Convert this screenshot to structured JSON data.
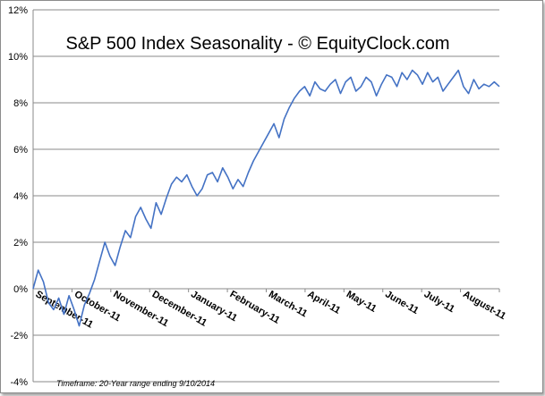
{
  "chart_data": {
    "type": "line",
    "title": "S&P 500 Index Seasonality - © EquityClock.com",
    "xlabel": "",
    "ylabel": "",
    "ylim": [
      -4,
      12
    ],
    "yticks": [
      "-4%",
      "-2%",
      "0%",
      "2%",
      "4%",
      "6%",
      "8%",
      "10%",
      "12%"
    ],
    "grid": "horizontal",
    "legend": "none",
    "line_color": "#4472c4",
    "x_tick_labels": [
      "September-11",
      "October-11",
      "November-11",
      "December-11",
      "January-11",
      "February-11",
      "March-11",
      "April-11",
      "May-11",
      "June-11",
      "July-11",
      "August-11"
    ],
    "footnote": "Timeframe: 20-Year range ending 9/10/2014",
    "series": [
      {
        "x": [
          "Sep 11",
          "Sep 15",
          "Sep 19",
          "Sep 23",
          "Sep 27",
          "Oct 1",
          "Oct 5",
          "Oct 9",
          "Oct 13",
          "Oct 17",
          "Oct 21",
          "Oct 25",
          "Oct 29",
          "Nov 2",
          "Nov 6",
          "Nov 10",
          "Nov 14",
          "Nov 18",
          "Nov 22",
          "Nov 26",
          "Nov 30",
          "Dec 4",
          "Dec 8",
          "Dec 12",
          "Dec 16",
          "Dec 20",
          "Dec 24",
          "Dec 28",
          "Jan 1",
          "Jan 5",
          "Jan 9",
          "Jan 13",
          "Jan 17",
          "Jan 21",
          "Jan 25",
          "Jan 29",
          "Feb 2",
          "Feb 6",
          "Feb 10",
          "Feb 14",
          "Feb 18",
          "Feb 22",
          "Feb 26",
          "Mar 2",
          "Mar 6",
          "Mar 10",
          "Mar 14",
          "Mar 18",
          "Mar 22",
          "Mar 26",
          "Mar 30",
          "Apr 3",
          "Apr 7",
          "Apr 11",
          "Apr 15",
          "Apr 19",
          "Apr 23",
          "Apr 27",
          "May 1",
          "May 5",
          "May 9",
          "May 13",
          "May 17",
          "May 21",
          "May 25",
          "May 29",
          "Jun 2",
          "Jun 6",
          "Jun 10",
          "Jun 14",
          "Jun 18",
          "Jun 22",
          "Jun 26",
          "Jun 30",
          "Jul 4",
          "Jul 8",
          "Jul 12",
          "Jul 16",
          "Jul 20",
          "Jul 24",
          "Jul 28",
          "Aug 1",
          "Aug 5",
          "Aug 9",
          "Aug 13",
          "Aug 17",
          "Aug 21",
          "Aug 25",
          "Aug 29",
          "Sep 2",
          "Sep 6",
          "Sep 10"
        ],
        "values": [
          0.0,
          0.8,
          0.3,
          -0.6,
          -0.9,
          -0.4,
          -1.1,
          -0.3,
          -0.9,
          -1.6,
          -0.7,
          -0.2,
          0.4,
          1.2,
          2.0,
          1.4,
          1.0,
          1.8,
          2.5,
          2.2,
          3.1,
          3.5,
          3.0,
          2.6,
          3.7,
          3.2,
          3.9,
          4.5,
          4.8,
          4.6,
          4.9,
          4.4,
          4.0,
          4.3,
          4.9,
          5.0,
          4.6,
          5.2,
          4.8,
          4.3,
          4.7,
          4.4,
          5.0,
          5.5,
          5.9,
          6.3,
          6.7,
          7.1,
          6.5,
          7.3,
          7.8,
          8.2,
          8.5,
          8.7,
          8.3,
          8.9,
          8.6,
          8.5,
          8.8,
          9.0,
          8.4,
          8.9,
          9.1,
          8.5,
          8.7,
          9.1,
          8.9,
          8.3,
          8.8,
          9.2,
          9.1,
          8.7,
          9.3,
          9.0,
          9.4,
          9.2,
          8.8,
          9.3,
          8.9,
          9.1,
          8.5,
          8.8,
          9.1,
          9.4,
          8.7,
          8.4,
          9.0,
          8.6,
          8.8,
          8.7,
          8.9,
          8.7
        ]
      }
    ]
  }
}
